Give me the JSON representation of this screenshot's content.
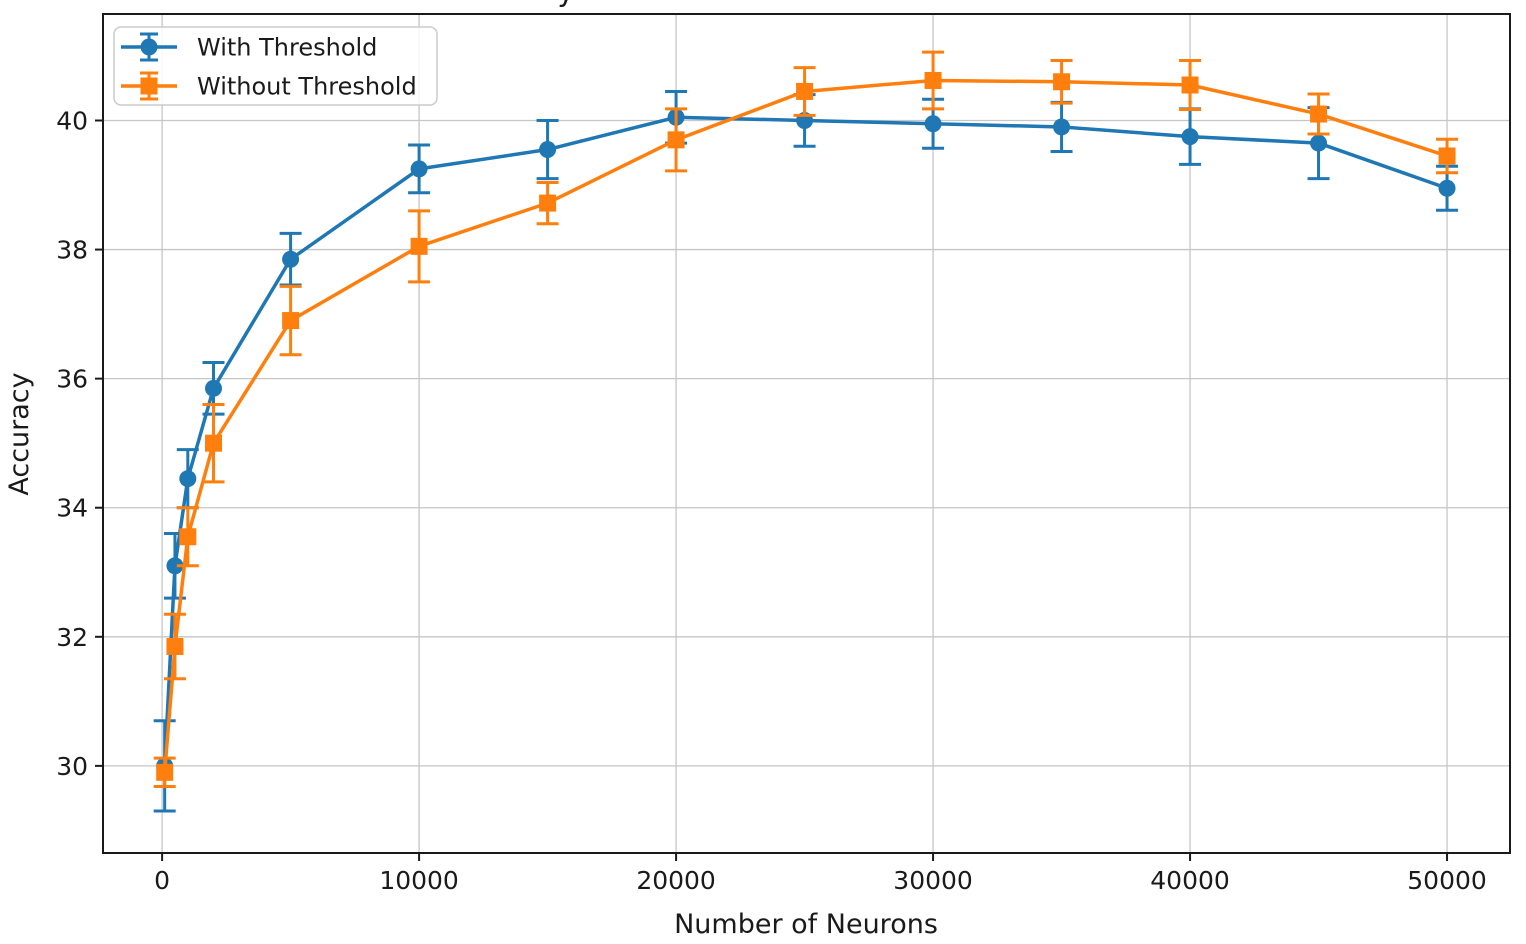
{
  "chart_data": {
    "type": "line",
    "title": "",
    "title_visible_fragment": "y",
    "xlabel": "Number of Neurons",
    "ylabel": "Accuracy",
    "x": [
      100,
      500,
      1000,
      2000,
      5000,
      10000,
      15000,
      20000,
      25000,
      30000,
      35000,
      40000,
      45000,
      50000
    ],
    "series": [
      {
        "name": "With Threshold",
        "color": "#1f77b4",
        "marker": "circle",
        "values": [
          30.0,
          33.1,
          34.45,
          35.85,
          37.85,
          39.25,
          39.55,
          40.05,
          40.0,
          39.95,
          39.9,
          39.75,
          39.65,
          38.95
        ],
        "errors": [
          0.7,
          0.5,
          0.45,
          0.4,
          0.4,
          0.37,
          0.45,
          0.4,
          0.4,
          0.38,
          0.38,
          0.43,
          0.55,
          0.34
        ]
      },
      {
        "name": "Without Threshold",
        "color": "#ff7f0e",
        "marker": "square",
        "values": [
          29.9,
          31.85,
          33.55,
          35.0,
          36.9,
          38.05,
          38.72,
          39.7,
          40.45,
          40.62,
          40.6,
          40.55,
          40.1,
          39.45
        ],
        "errors": [
          0.22,
          0.5,
          0.45,
          0.6,
          0.53,
          0.55,
          0.32,
          0.48,
          0.37,
          0.44,
          0.33,
          0.38,
          0.31,
          0.26
        ]
      }
    ],
    "xticks": [
      0,
      10000,
      20000,
      30000,
      40000,
      50000
    ],
    "yticks": [
      30,
      32,
      34,
      36,
      38,
      40
    ],
    "xlim": [
      -2300,
      52450
    ],
    "ylim": [
      28.65,
      41.65
    ],
    "grid": true,
    "legend_position": "upper left",
    "style": {
      "grid_color": "#c6c6c6",
      "spine_color": "#1a1a1a",
      "background": "#ffffff",
      "legend_border": "#cccccc",
      "text_color": "#1a1a1a"
    }
  }
}
